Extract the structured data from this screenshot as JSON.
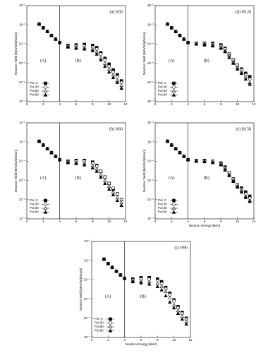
{
  "chart_data": [
    {
      "type": "scatter",
      "title": "(a) H30",
      "y_label": "Neutron Yield [MeV/sr/photon]",
      "region_labels": [
        "(A)",
        "(B)"
      ],
      "divider_x": 4,
      "log_y": true,
      "legend": "lower left",
      "xlim": [
        0,
        12
      ],
      "xticks": [
        0,
        2,
        4,
        6,
        8,
        10,
        12
      ],
      "ylim": [
        1e-07,
        0.01
      ],
      "yticks": [
        {
          "value": 1e-07,
          "label": "10⁻⁷"
        },
        {
          "value": 1e-06,
          "label": "10⁻⁶"
        },
        {
          "value": 1e-05,
          "label": "10⁻⁵"
        },
        {
          "value": 0.0001,
          "label": "10⁻⁴"
        },
        {
          "value": 0.001,
          "label": "10⁻³"
        },
        {
          "value": 0.01,
          "label": "10⁻²"
        }
      ],
      "x": [
        1.5,
        2,
        2.5,
        3,
        3.5,
        4,
        5,
        6,
        7,
        8,
        8.5,
        9,
        9.5,
        10,
        10.5,
        11,
        11.5
      ],
      "series": [
        {
          "name": "Pol. 0",
          "color": "#000000",
          "marker": "square-filled",
          "values": [
            0.0011,
            0.0007,
            0.00045,
            0.00028,
            0.00018,
            0.00012,
            8.5e-05,
            9e-05,
            9.5e-05,
            8.5e-05,
            6.5e-05,
            3.5e-05,
            1.8e-05,
            9e-06,
            4.5e-06,
            2.5e-06,
            1.2e-06
          ]
        },
        {
          "name": "Pol.30",
          "color": "#000000",
          "marker": "circle-open",
          "values": [
            0.0011,
            0.0007,
            0.00045,
            0.00028,
            0.00018,
            0.00012,
            8e-05,
            8e-05,
            8e-05,
            7e-05,
            5.5e-05,
            3e-05,
            1.5e-05,
            7e-06,
            3.5e-06,
            2e-06,
            1e-06
          ]
        },
        {
          "name": "Pol.60",
          "color": "#000000",
          "marker": "triangle-open",
          "values": [
            0.0011,
            0.0007,
            0.00045,
            0.00028,
            0.00018,
            0.00012,
            7.5e-05,
            7e-05,
            6.5e-05,
            5.5e-05,
            4e-05,
            2e-05,
            1e-05,
            5e-06,
            2.5e-06,
            1.3e-06,
            7e-07
          ]
        },
        {
          "name": "Pol.90",
          "color": "#000000",
          "marker": "triangle-filled",
          "values": [
            0.0011,
            0.0007,
            0.00045,
            0.00028,
            0.00018,
            0.00012,
            7e-05,
            6e-05,
            5.5e-05,
            4.5e-05,
            3e-05,
            1.5e-05,
            7e-06,
            3.5e-06,
            1.8e-06,
            1e-06,
            5e-07
          ]
        }
      ]
    },
    {
      "type": "scatter",
      "title": "(d) H120",
      "y_label": "Neutron Yield [MeV/sr/photon]",
      "region_labels": [
        "(A)",
        "(B)"
      ],
      "divider_x": 4,
      "log_y": true,
      "legend": "lower left",
      "xlim": [
        0,
        12
      ],
      "xticks": [
        0,
        2,
        4,
        6,
        8,
        10,
        12
      ],
      "ylim": [
        1e-07,
        0.01
      ],
      "yticks": [
        {
          "value": 1e-07,
          "label": "10⁻⁷"
        },
        {
          "value": 1e-06,
          "label": "10⁻⁶"
        },
        {
          "value": 1e-05,
          "label": "10⁻⁵"
        },
        {
          "value": 0.0001,
          "label": "10⁻⁴"
        },
        {
          "value": 0.001,
          "label": "10⁻³"
        },
        {
          "value": 0.01,
          "label": "10⁻²"
        }
      ],
      "x": [
        1.5,
        2,
        2.5,
        3,
        3.5,
        4,
        5,
        6,
        7,
        8,
        8.5,
        9,
        9.5,
        10,
        10.5,
        11,
        11.5
      ],
      "series": [
        {
          "name": "Pol. 0",
          "color": "#000000",
          "marker": "square-filled",
          "values": [
            0.0011,
            0.0007,
            0.00045,
            0.00028,
            0.00018,
            0.00012,
            0.00011,
            0.00011,
            0.00011,
            9e-05,
            6e-05,
            3e-05,
            1.5e-05,
            8e-06,
            5e-06,
            3e-06,
            2e-06
          ]
        },
        {
          "name": "Pol.30",
          "color": "#000000",
          "marker": "circle-open",
          "values": [
            0.0011,
            0.0007,
            0.00045,
            0.00028,
            0.00018,
            0.00012,
            0.00011,
            0.00011,
            0.0001,
            8e-05,
            5.5e-05,
            3e-05,
            1.5e-05,
            8e-06,
            4.5e-06,
            2.5e-06,
            1.5e-06
          ]
        },
        {
          "name": "Pol.60",
          "color": "#000000",
          "marker": "triangle-open",
          "values": [
            0.0011,
            0.0007,
            0.00045,
            0.00028,
            0.00018,
            0.00012,
            0.0001,
            0.0001,
            9e-05,
            7e-05,
            4.5e-05,
            2.5e-05,
            1.2e-05,
            6e-06,
            3.5e-06,
            2e-06,
            1e-06
          ]
        },
        {
          "name": "Pol.90",
          "color": "#000000",
          "marker": "triangle-filled",
          "values": [
            0.0011,
            0.0007,
            0.00045,
            0.00028,
            0.00018,
            0.00012,
            0.0001,
            9e-05,
            8e-05,
            6e-05,
            4e-05,
            2e-05,
            1e-05,
            5e-06,
            3e-06,
            1.5e-06,
            8e-07
          ]
        }
      ]
    },
    {
      "type": "scatter",
      "title": "(b) H60",
      "y_label": "Neutron Yield [MeV/sr/photon]",
      "region_labels": [
        "(A)",
        "(B)"
      ],
      "divider_x": 4,
      "log_y": true,
      "legend": "lower left",
      "xlim": [
        0,
        12
      ],
      "xticks": [
        0,
        2,
        4,
        6,
        8,
        10,
        12
      ],
      "ylim": [
        1e-07,
        0.01
      ],
      "yticks": [
        {
          "value": 1e-07,
          "label": "10⁻⁷"
        },
        {
          "value": 1e-06,
          "label": "10⁻⁶"
        },
        {
          "value": 1e-05,
          "label": "10⁻⁵"
        },
        {
          "value": 0.0001,
          "label": "10⁻⁴"
        },
        {
          "value": 0.001,
          "label": "10⁻³"
        },
        {
          "value": 0.01,
          "label": "10⁻²"
        }
      ],
      "x": [
        1.5,
        2,
        2.5,
        3,
        3.5,
        4,
        5,
        6,
        7,
        8,
        8.5,
        9,
        9.5,
        10,
        10.5,
        11,
        11.5
      ],
      "series": [
        {
          "name": "Pol. 0",
          "color": "#000000",
          "marker": "square-filled",
          "values": [
            0.0011,
            0.0007,
            0.00045,
            0.00028,
            0.00018,
            0.00012,
            0.0001,
            0.00011,
            0.00011,
            9e-05,
            6e-05,
            3e-05,
            1.5e-05,
            7e-06,
            3.5e-06,
            2e-06,
            1e-06
          ]
        },
        {
          "name": "Pol.30",
          "color": "#000000",
          "marker": "circle-open",
          "values": [
            0.0011,
            0.0007,
            0.00045,
            0.00028,
            0.00018,
            0.00012,
            9.5e-05,
            0.0001,
            0.0001,
            8e-05,
            5.5e-05,
            3e-05,
            1.5e-05,
            7e-06,
            4e-06,
            2e-06,
            1e-06
          ]
        },
        {
          "name": "Pol.60",
          "color": "#000000",
          "marker": "triangle-open",
          "values": [
            0.0011,
            0.0007,
            0.00045,
            0.00028,
            0.00018,
            0.00012,
            9e-05,
            8.5e-05,
            8e-05,
            6e-05,
            4e-05,
            2e-05,
            1e-05,
            5e-06,
            2.5e-06,
            1.3e-06,
            7e-07
          ]
        },
        {
          "name": "Pol.90",
          "color": "#000000",
          "marker": "triangle-filled",
          "values": [
            0.0011,
            0.0007,
            0.00045,
            0.00028,
            0.00018,
            0.00012,
            8.5e-05,
            7.5e-05,
            6.5e-05,
            4.5e-05,
            3e-05,
            1.5e-05,
            7e-06,
            3.5e-06,
            1.8e-06,
            9e-07,
            5e-07
          ]
        }
      ]
    },
    {
      "type": "scatter",
      "title": "(e) H150",
      "x_label": "Neutron Energy [MeV]",
      "y_label": "Neutron Yield [MeV/sr/photon]",
      "region_labels": [
        "(A)",
        "(B)"
      ],
      "divider_x": 4,
      "log_y": true,
      "legend": "lower left",
      "xlim": [
        0,
        12
      ],
      "xticks": [
        0,
        2,
        4,
        6,
        8,
        10,
        12
      ],
      "ylim": [
        1e-07,
        0.01
      ],
      "yticks": [
        {
          "value": 1e-07,
          "label": "10⁻⁷"
        },
        {
          "value": 1e-06,
          "label": "10⁻⁶"
        },
        {
          "value": 1e-05,
          "label": "10⁻⁵"
        },
        {
          "value": 0.0001,
          "label": "10⁻⁴"
        },
        {
          "value": 0.001,
          "label": "10⁻³"
        },
        {
          "value": 0.01,
          "label": "10⁻²"
        }
      ],
      "x": [
        1.5,
        2,
        2.5,
        3,
        3.5,
        4,
        5,
        6,
        7,
        8,
        8.5,
        9,
        9.5,
        10,
        10.5,
        11,
        11.5
      ],
      "series": [
        {
          "name": "Pol. 0",
          "color": "#000000",
          "marker": "square-filled",
          "values": [
            0.0011,
            0.0007,
            0.00045,
            0.00028,
            0.00018,
            0.00012,
            0.00011,
            0.00011,
            0.0001,
            8e-05,
            5e-05,
            2.5e-05,
            1.2e-05,
            6e-06,
            4e-06,
            2.5e-06,
            1.5e-06
          ]
        },
        {
          "name": "Pol.30",
          "color": "#000000",
          "marker": "circle-open",
          "values": [
            0.0011,
            0.0007,
            0.00045,
            0.00028,
            0.00018,
            0.00012,
            0.00011,
            0.000105,
            0.0001,
            7.5e-05,
            4.5e-05,
            2.5e-05,
            1.2e-05,
            6e-06,
            3.5e-06,
            2e-06,
            1.2e-06
          ]
        },
        {
          "name": "Pol.60",
          "color": "#000000",
          "marker": "triangle-open",
          "values": [
            0.0011,
            0.0007,
            0.00045,
            0.00028,
            0.00018,
            0.00012,
            0.000105,
            0.0001,
            9e-05,
            7e-05,
            4e-05,
            2e-05,
            1e-05,
            5e-06,
            3e-06,
            1.5e-06,
            9e-07
          ]
        },
        {
          "name": "Pol.90",
          "color": "#000000",
          "marker": "triangle-filled",
          "values": [
            0.0011,
            0.0007,
            0.00045,
            0.00028,
            0.00018,
            0.00012,
            0.0001,
            9.5e-05,
            8.5e-05,
            6.5e-05,
            3.5e-05,
            1.8e-05,
            9e-06,
            4.5e-06,
            2.5e-06,
            1.3e-06,
            8e-07
          ]
        }
      ]
    },
    {
      "type": "scatter",
      "title": "(c) H90",
      "x_label": "Neutron Energy [MeV]",
      "y_label": "Neutron Yield [MeV/sr/photon]",
      "region_labels": [
        "(A)",
        "(B)"
      ],
      "divider_x": 4,
      "log_y": true,
      "legend": "lower left",
      "xlim": [
        0,
        12
      ],
      "xticks": [
        0,
        2,
        4,
        6,
        8,
        10,
        12
      ],
      "ylim": [
        1e-07,
        0.01
      ],
      "yticks": [
        {
          "value": 1e-07,
          "label": "10⁻⁷"
        },
        {
          "value": 1e-06,
          "label": "10⁻⁶"
        },
        {
          "value": 1e-05,
          "label": "10⁻⁵"
        },
        {
          "value": 0.0001,
          "label": "10⁻⁴"
        },
        {
          "value": 0.001,
          "label": "10⁻³"
        },
        {
          "value": 0.01,
          "label": "10⁻²"
        }
      ],
      "x": [
        1.5,
        2,
        2.5,
        3,
        3.5,
        4,
        5,
        6,
        7,
        8,
        8.5,
        9,
        9.5,
        10,
        10.5,
        11,
        11.5
      ],
      "series": [
        {
          "name": "Pol. 0",
          "color": "#000000",
          "marker": "square-filled",
          "values": [
            0.0012,
            0.0007,
            0.00045,
            0.00028,
            0.00018,
            0.00012,
            0.00011,
            0.00013,
            0.00013,
            0.00011,
            8e-05,
            4e-05,
            2e-05,
            9e-06,
            4e-06,
            2e-06,
            1e-06
          ]
        },
        {
          "name": "Pol.30",
          "color": "#000000",
          "marker": "circle-open",
          "values": [
            0.0012,
            0.0007,
            0.00045,
            0.00028,
            0.00018,
            0.00012,
            0.0001,
            0.00011,
            0.00011,
            9e-05,
            6.5e-05,
            3.5e-05,
            1.7e-05,
            8e-06,
            3.5e-06,
            1.8e-06,
            9e-07
          ]
        },
        {
          "name": "Pol.60",
          "color": "#000000",
          "marker": "triangle-open",
          "values": [
            0.0012,
            0.0007,
            0.00045,
            0.00028,
            0.00018,
            0.00012,
            9e-05,
            8.5e-05,
            8e-05,
            6.5e-05,
            4.5e-05,
            2.5e-05,
            1.2e-05,
            5e-06,
            2.5e-06,
            1.3e-06,
            7e-07
          ]
        },
        {
          "name": "Pol.90",
          "color": "#000000",
          "marker": "triangle-filled",
          "values": [
            0.0012,
            0.0007,
            0.00045,
            0.00028,
            0.00018,
            0.00012,
            8e-05,
            7e-05,
            6e-05,
            4.5e-05,
            3e-05,
            1.5e-05,
            7e-06,
            3.5e-06,
            1.8e-06,
            9e-07,
            5e-07
          ]
        }
      ]
    }
  ]
}
